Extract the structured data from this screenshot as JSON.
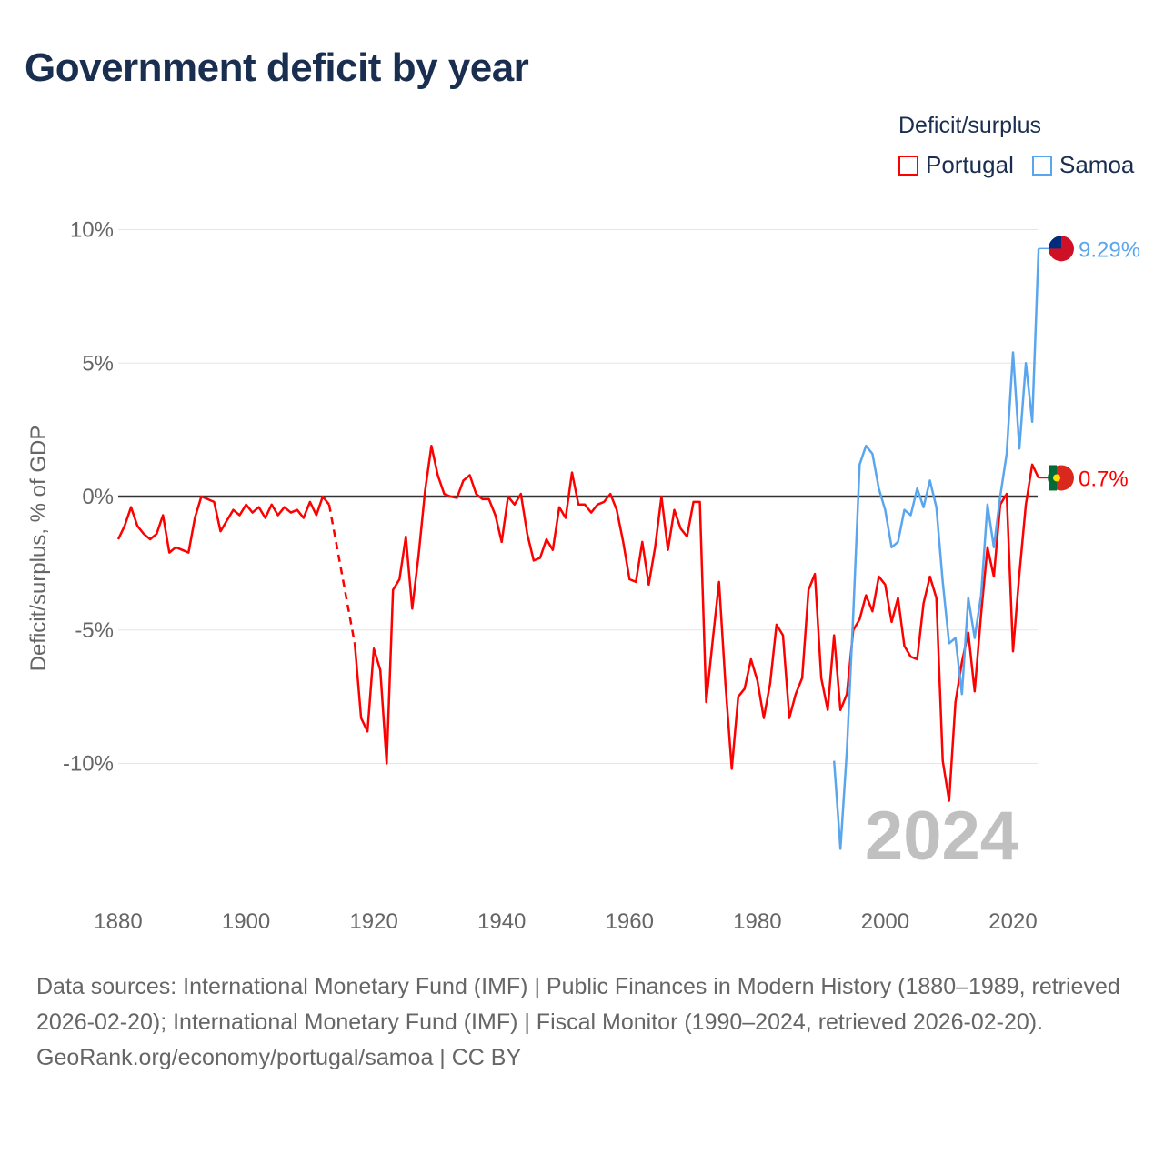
{
  "chart_data": {
    "type": "line",
    "title": "Government deficit by year",
    "ylabel": "Deficit/surplus, % of GDP",
    "xlabel": "",
    "legend_title": "Deficit/surplus",
    "legend_position": "top-right",
    "xlim": [
      1880,
      2025.5
    ],
    "ylim": [
      -14.5,
      10
    ],
    "x_ticks": [
      {
        "v": 1880,
        "label": "1880"
      },
      {
        "v": 1900,
        "label": "1900"
      },
      {
        "v": 1920,
        "label": "1920"
      },
      {
        "v": 1940,
        "label": "1940"
      },
      {
        "v": 1960,
        "label": "1960"
      },
      {
        "v": 1980,
        "label": "1980"
      },
      {
        "v": 2000,
        "label": "2000"
      },
      {
        "v": 2020,
        "label": "2020"
      }
    ],
    "y_ticks": [
      {
        "v": 10,
        "label": "10%"
      },
      {
        "v": 5,
        "label": "5%"
      },
      {
        "v": 0,
        "label": "0%"
      },
      {
        "v": -5,
        "label": "-5%"
      },
      {
        "v": -10,
        "label": "-10%"
      }
    ],
    "watermark_year": "2024",
    "series": [
      {
        "name": "Portugal",
        "color": "#ff0000",
        "end_label": "0.7%",
        "gap": [
          1913,
          1917
        ],
        "start": 1880,
        "values": [
          -1.6,
          -1.1,
          -0.4,
          -1.1,
          -1.4,
          -1.6,
          -1.4,
          -0.7,
          -2.1,
          -1.9,
          -2.0,
          -2.1,
          -0.8,
          0,
          -0.1,
          -0.2,
          -1.3,
          -0.9,
          -0.5,
          -0.7,
          -0.3,
          -0.6,
          -0.4,
          -0.8,
          -0.3,
          -0.7,
          -0.4,
          -0.6,
          -0.5,
          -0.8,
          -0.2,
          -0.7,
          0,
          -0.3,
          null,
          null,
          null,
          -5.5,
          -8.3,
          -8.8,
          -5.7,
          -6.5,
          -10.0,
          -3.5,
          -3.1,
          -1.5,
          -4.2,
          -2.2,
          0.2,
          1.9,
          0.8,
          0.1,
          0,
          -0.05,
          0.6,
          0.8,
          0.1,
          -0.1,
          -0.1,
          -0.7,
          -1.7,
          0,
          -0.3,
          0.1,
          -1.4,
          -2.4,
          -2.3,
          -1.6,
          -2.0,
          -0.4,
          -0.8,
          0.9,
          -0.3,
          -0.3,
          -0.6,
          -0.3,
          -0.2,
          0.1,
          -0.5,
          -1.7,
          -3.1,
          -3.2,
          -1.7,
          -3.3,
          -1.9,
          0,
          -2.0,
          -0.5,
          -1.2,
          -1.5,
          -0.2,
          -0.2,
          -7.7,
          -5.4,
          -3.2,
          -7.0,
          -10.2,
          -7.5,
          -7.2,
          -6.1,
          -6.9,
          -8.3,
          -7.0,
          -4.8,
          -5.2,
          -8.3,
          -7.4,
          -6.8,
          -3.5,
          -2.9,
          -6.8,
          -8.0,
          -5.2,
          -8.0,
          -7.4,
          -5.0,
          -4.6,
          -3.7,
          -4.3,
          -3.0,
          -3.3,
          -4.7,
          -3.8,
          -5.6,
          -6.0,
          -6.1,
          -4.0,
          -3.0,
          -3.8,
          -9.9,
          -11.4,
          -7.7,
          -6.2,
          -5.1,
          -7.3,
          -4.4,
          -1.9,
          -3.0,
          -0.3,
          0.1,
          -5.8,
          -2.9,
          -0.3,
          1.2,
          0.7
        ]
      },
      {
        "name": "Samoa",
        "color": "#5aa6ee",
        "end_label": "9.29%",
        "start": 1992,
        "values": [
          -9.9,
          -13.2,
          -9.5,
          -4.4,
          1.2,
          1.9,
          1.6,
          0.3,
          -0.5,
          -1.9,
          -1.7,
          -0.5,
          -0.7,
          0.3,
          -0.4,
          0.6,
          -0.4,
          -3.2,
          -5.5,
          -5.3,
          -7.4,
          -3.8,
          -5.3,
          -3.7,
          -0.3,
          -1.9,
          0,
          1.6,
          5.4,
          1.8,
          5.0,
          2.8,
          9.29
        ]
      }
    ]
  },
  "footer": {
    "sources": "Data sources: International Monetary Fund (IMF) | Public Finances in Modern History (1880–1989, retrieved 2026-02-20); International Monetary Fund (IMF) | Fiscal Monitor (1990–2024, retrieved 2026-02-20).",
    "link": "GeoRank.org/economy/portugal/samoa | CC BY"
  }
}
